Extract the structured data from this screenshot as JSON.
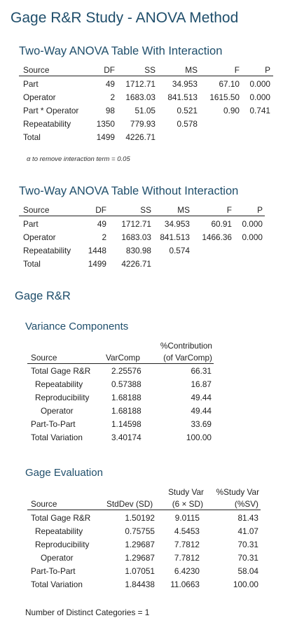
{
  "title": "Gage R&R Study - ANOVA Method",
  "anova_with": {
    "title": "Two-Way ANOVA Table With Interaction",
    "headers": [
      "Source",
      "DF",
      "SS",
      "MS",
      "F",
      "P"
    ],
    "rows": [
      [
        "Part",
        "49",
        "1712.71",
        "34.953",
        "67.10",
        "0.000"
      ],
      [
        "Operator",
        "2",
        "1683.03",
        "841.513",
        "1615.50",
        "0.000"
      ],
      [
        "Part * Operator",
        "98",
        "51.05",
        "0.521",
        "0.90",
        "0.741"
      ],
      [
        "Repeatability",
        "1350",
        "779.93",
        "0.578",
        "",
        ""
      ],
      [
        "Total",
        "1499",
        "4226.71",
        "",
        "",
        ""
      ]
    ],
    "note": "α to remove interaction term = 0.05"
  },
  "anova_without": {
    "title": "Two-Way ANOVA Table Without Interaction",
    "headers": [
      "Source",
      "DF",
      "SS",
      "MS",
      "F",
      "P"
    ],
    "rows": [
      [
        "Part",
        "49",
        "1712.71",
        "34.953",
        "60.91",
        "0.000"
      ],
      [
        "Operator",
        "2",
        "1683.03",
        "841.513",
        "1466.36",
        "0.000"
      ],
      [
        "Repeatability",
        "1448",
        "830.98",
        "0.574",
        "",
        ""
      ],
      [
        "Total",
        "1499",
        "4226.71",
        "",
        "",
        ""
      ]
    ]
  },
  "gage_rr_title": "Gage R&R",
  "variance_components": {
    "title": "Variance Components",
    "headers": [
      "Source",
      "VarComp",
      "%Contribution",
      "(of VarComp)"
    ],
    "rows": [
      [
        "Total Gage R&R",
        "2.25576",
        "66.31"
      ],
      [
        "Repeatability",
        "0.57388",
        "16.87"
      ],
      [
        "Reproducibility",
        "1.68188",
        "49.44"
      ],
      [
        "Operator",
        "1.68188",
        "49.44"
      ],
      [
        "Part-To-Part",
        "1.14598",
        "33.69"
      ],
      [
        "Total Variation",
        "3.40174",
        "100.00"
      ]
    ]
  },
  "gage_evaluation": {
    "title": "Gage Evaluation",
    "headers": [
      "Source",
      "StdDev (SD)",
      "Study Var",
      "(6 × SD)",
      "%Study Var",
      "(%SV)"
    ],
    "rows": [
      [
        "Total Gage R&R",
        "1.50192",
        "9.0115",
        "81.43"
      ],
      [
        "Repeatability",
        "0.75755",
        "4.5453",
        "41.07"
      ],
      [
        "Reproducibility",
        "1.29687",
        "7.7812",
        "70.31"
      ],
      [
        "Operator",
        "1.29687",
        "7.7812",
        "70.31"
      ],
      [
        "Part-To-Part",
        "1.07051",
        "6.4230",
        "58.04"
      ],
      [
        "Total Variation",
        "1.84438",
        "11.0663",
        "100.00"
      ]
    ]
  },
  "distinct_categories": "Number of Distinct Categories = 1"
}
